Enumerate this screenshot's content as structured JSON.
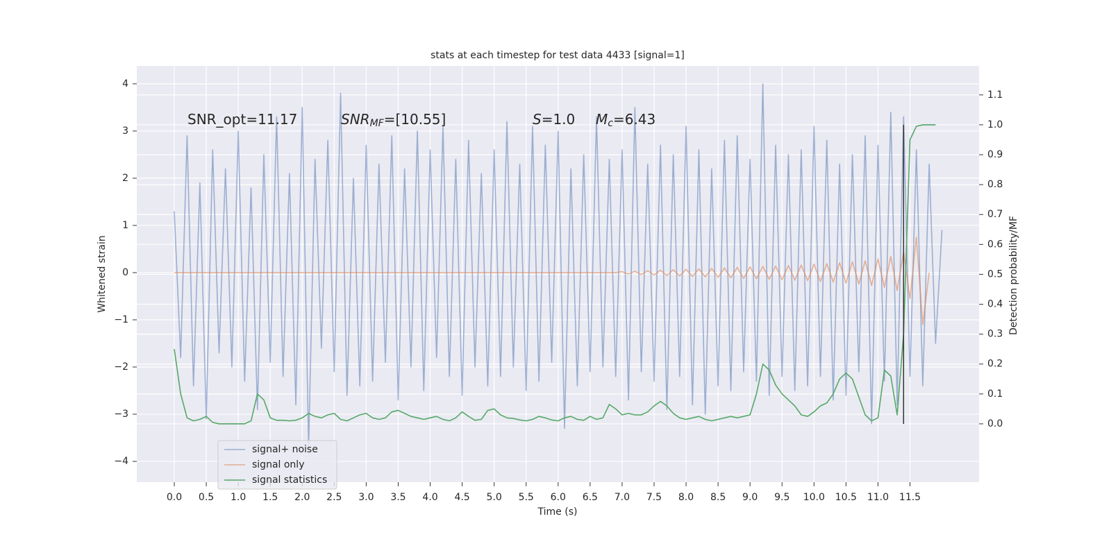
{
  "chart_data": {
    "type": "line",
    "title": "stats at each timestep for test data 4433 [signal=1]",
    "xlabel": "Time (s)",
    "ylabel": "Whitened strain",
    "y2label": "Detection probability/MF",
    "annotations": [
      {
        "main": "SNR_opt=11.17"
      },
      {
        "main": "SNR",
        "sub": "MF",
        "rest": "=[10.55]"
      },
      {
        "main": "S",
        "rest": "=1.0"
      },
      {
        "main": "M",
        "sub": "c",
        "rest": "=6.43"
      }
    ],
    "x": [
      0,
      0.1,
      0.2,
      0.3,
      0.4,
      0.5,
      0.6,
      0.7,
      0.8,
      0.9,
      1.0,
      1.1,
      1.2,
      1.3,
      1.4,
      1.5,
      1.6,
      1.7,
      1.8,
      1.9,
      2.0,
      2.1,
      2.2,
      2.3,
      2.4,
      2.5,
      2.6,
      2.7,
      2.8,
      2.9,
      3.0,
      3.1,
      3.2,
      3.3,
      3.4,
      3.5,
      3.6,
      3.7,
      3.8,
      3.9,
      4.0,
      4.1,
      4.2,
      4.3,
      4.4,
      4.5,
      4.6,
      4.7,
      4.8,
      4.9,
      5.0,
      5.1,
      5.2,
      5.3,
      5.4,
      5.5,
      5.6,
      5.7,
      5.8,
      5.9,
      6.0,
      6.1,
      6.2,
      6.3,
      6.4,
      6.5,
      6.6,
      6.7,
      6.8,
      6.9,
      7.0,
      7.1,
      7.2,
      7.3,
      7.4,
      7.5,
      7.6,
      7.7,
      7.8,
      7.9,
      8.0,
      8.1,
      8.2,
      8.3,
      8.4,
      8.5,
      8.6,
      8.7,
      8.8,
      8.9,
      9.0,
      9.1,
      9.2,
      9.3,
      9.4,
      9.5,
      9.6,
      9.7,
      9.8,
      9.9,
      10.0,
      10.1,
      10.2,
      10.3,
      10.4,
      10.5,
      10.6,
      10.7,
      10.8,
      10.9,
      11.0,
      11.1,
      11.2,
      11.3,
      11.4,
      11.5,
      11.6,
      11.7,
      11.8,
      11.9,
      12.0
    ],
    "series": [
      {
        "name": "signal+ noise",
        "color": "#4c72b0",
        "opacity": 0.5,
        "axis": "y",
        "values": [
          1.3,
          -1.8,
          2.9,
          -2.4,
          1.9,
          -3.1,
          2.6,
          -1.7,
          2.2,
          -2.0,
          3.0,
          -2.3,
          1.8,
          -2.9,
          2.5,
          -1.9,
          3.3,
          -2.2,
          2.1,
          -2.8,
          3.5,
          -3.7,
          2.4,
          -1.6,
          2.8,
          -2.1,
          3.8,
          -2.6,
          2.0,
          -2.4,
          2.7,
          -2.3,
          2.3,
          -1.9,
          2.9,
          -2.7,
          2.2,
          -2.0,
          3.0,
          -2.5,
          2.6,
          -1.8,
          3.1,
          -2.2,
          2.4,
          -2.6,
          2.8,
          -2.0,
          2.1,
          -2.4,
          2.6,
          -2.2,
          3.2,
          -2.0,
          2.3,
          -2.5,
          3.1,
          -2.3,
          2.7,
          -1.9,
          3.0,
          -3.3,
          2.2,
          -2.4,
          2.5,
          -2.1,
          3.3,
          -2.0,
          2.4,
          -2.2,
          2.6,
          -2.7,
          3.5,
          -2.1,
          2.3,
          -2.3,
          2.7,
          -2.9,
          2.5,
          -2.2,
          3.1,
          -2.8,
          2.6,
          -3.0,
          2.2,
          -2.4,
          2.8,
          -2.5,
          2.9,
          -2.1,
          2.4,
          -2.3,
          4.0,
          -2.6,
          2.7,
          -2.2,
          2.5,
          -2.5,
          2.6,
          -2.4,
          3.1,
          -2.2,
          2.8,
          -2.7,
          2.3,
          -2.6,
          2.5,
          -2.1,
          2.9,
          -3.2,
          2.7,
          -2.3,
          3.4,
          -2.8,
          3.3,
          -2.2,
          2.6,
          -2.4,
          2.3,
          -1.5,
          0.9
        ]
      },
      {
        "name": "signal only",
        "color": "#dd8452",
        "opacity": 0.6,
        "axis": "y",
        "values": [
          0,
          0,
          0,
          0,
          0,
          0,
          0,
          0,
          0,
          0,
          0,
          0,
          0,
          0,
          0,
          0,
          0,
          0,
          0,
          0,
          0,
          0,
          0,
          0,
          0,
          0,
          0,
          0,
          0,
          0,
          0,
          0,
          0,
          0,
          0,
          0,
          0,
          0,
          0,
          0,
          0,
          0,
          0,
          0,
          0,
          0,
          0,
          0,
          0,
          0,
          0,
          0,
          0,
          0,
          0,
          0,
          0,
          0,
          0,
          0,
          0,
          0,
          0,
          0,
          0,
          0,
          0,
          0,
          0,
          0,
          0.02,
          -0.03,
          0.03,
          -0.04,
          0.04,
          -0.05,
          0.05,
          -0.06,
          0.06,
          -0.07,
          0.07,
          -0.08,
          0.08,
          -0.09,
          0.09,
          -0.1,
          0.1,
          -0.11,
          0.11,
          -0.12,
          0.12,
          -0.13,
          0.13,
          -0.14,
          0.14,
          -0.15,
          0.15,
          -0.16,
          0.16,
          -0.17,
          0.18,
          -0.19,
          0.19,
          -0.2,
          0.21,
          -0.22,
          0.23,
          -0.24,
          0.25,
          -0.27,
          0.29,
          -0.31,
          0.34,
          -0.38,
          0.44,
          -0.55,
          0.75,
          -1.1,
          0,
          null,
          null
        ]
      },
      {
        "name": "signal statistics",
        "color": "#55a868",
        "opacity": 1,
        "axis": "y2",
        "values": [
          0.25,
          0.1,
          0.02,
          0.01,
          0.015,
          0.025,
          0.005,
          0.0,
          0.0,
          0.0,
          0.0,
          0.0,
          0.01,
          0.1,
          0.08,
          0.02,
          0.012,
          0.012,
          0.01,
          0.012,
          0.02,
          0.035,
          0.025,
          0.02,
          0.03,
          0.035,
          0.015,
          0.01,
          0.02,
          0.03,
          0.035,
          0.02,
          0.015,
          0.02,
          0.04,
          0.045,
          0.035,
          0.025,
          0.02,
          0.015,
          0.02,
          0.025,
          0.015,
          0.01,
          0.02,
          0.04,
          0.025,
          0.012,
          0.015,
          0.045,
          0.05,
          0.03,
          0.02,
          0.018,
          0.013,
          0.01,
          0.015,
          0.025,
          0.02,
          0.013,
          0.01,
          0.02,
          0.025,
          0.015,
          0.012,
          0.025,
          0.015,
          0.02,
          0.065,
          0.05,
          0.03,
          0.035,
          0.03,
          0.03,
          0.04,
          0.06,
          0.075,
          0.06,
          0.035,
          0.02,
          0.015,
          0.02,
          0.025,
          0.015,
          0.01,
          0.015,
          0.02,
          0.025,
          0.02,
          0.025,
          0.03,
          0.1,
          0.2,
          0.18,
          0.13,
          0.1,
          0.08,
          0.06,
          0.03,
          0.025,
          0.04,
          0.06,
          0.07,
          0.1,
          0.15,
          0.17,
          0.15,
          0.09,
          0.03,
          0.01,
          0.02,
          0.18,
          0.16,
          0.03,
          0.3,
          0.95,
          0.995,
          1.0,
          1.0,
          1.0,
          null
        ]
      }
    ],
    "vline": {
      "x": 11.4,
      "ymin": 0,
      "ymax": 1,
      "color": "#333333"
    },
    "xlim": [
      -0.586,
      12.58
    ],
    "ylim": [
      -4.44,
      4.38
    ],
    "y2lim": [
      -0.195,
      1.197
    ],
    "xticks": [
      {
        "value": 0,
        "label": "0.0"
      },
      0.5,
      {
        "value": 1,
        "label": "1.0"
      },
      1.5,
      {
        "value": 2,
        "label": "2.0"
      },
      2.5,
      {
        "value": 3,
        "label": "3.0"
      },
      3.5,
      {
        "value": 4,
        "label": "4.0"
      },
      4.5,
      {
        "value": 5,
        "label": "5.0"
      },
      5.5,
      {
        "value": 6,
        "label": "6.0"
      },
      6.5,
      {
        "value": 7,
        "label": "7.0"
      },
      7.5,
      {
        "value": 8,
        "label": "8.0"
      },
      8.5,
      {
        "value": 9,
        "label": "9.0"
      },
      9.5,
      {
        "value": 10,
        "label": "10.0"
      },
      10.5,
      {
        "value": 11,
        "label": "11.0"
      },
      11.5
    ],
    "yticks": [
      {
        "value": -4,
        "label": "−4"
      },
      {
        "value": -3,
        "label": "−3"
      },
      {
        "value": -2,
        "label": "−2"
      },
      {
        "value": -1,
        "label": "−1"
      },
      0,
      1,
      2,
      3,
      4
    ],
    "y2ticks": [
      {
        "value": 0,
        "label": "0.0"
      },
      0.1,
      0.2,
      0.3,
      0.4,
      0.5,
      0.6,
      0.7,
      0.8,
      0.9,
      {
        "value": 1,
        "label": "1.0"
      },
      1.1
    ],
    "grid": true,
    "legend": "lower left"
  }
}
